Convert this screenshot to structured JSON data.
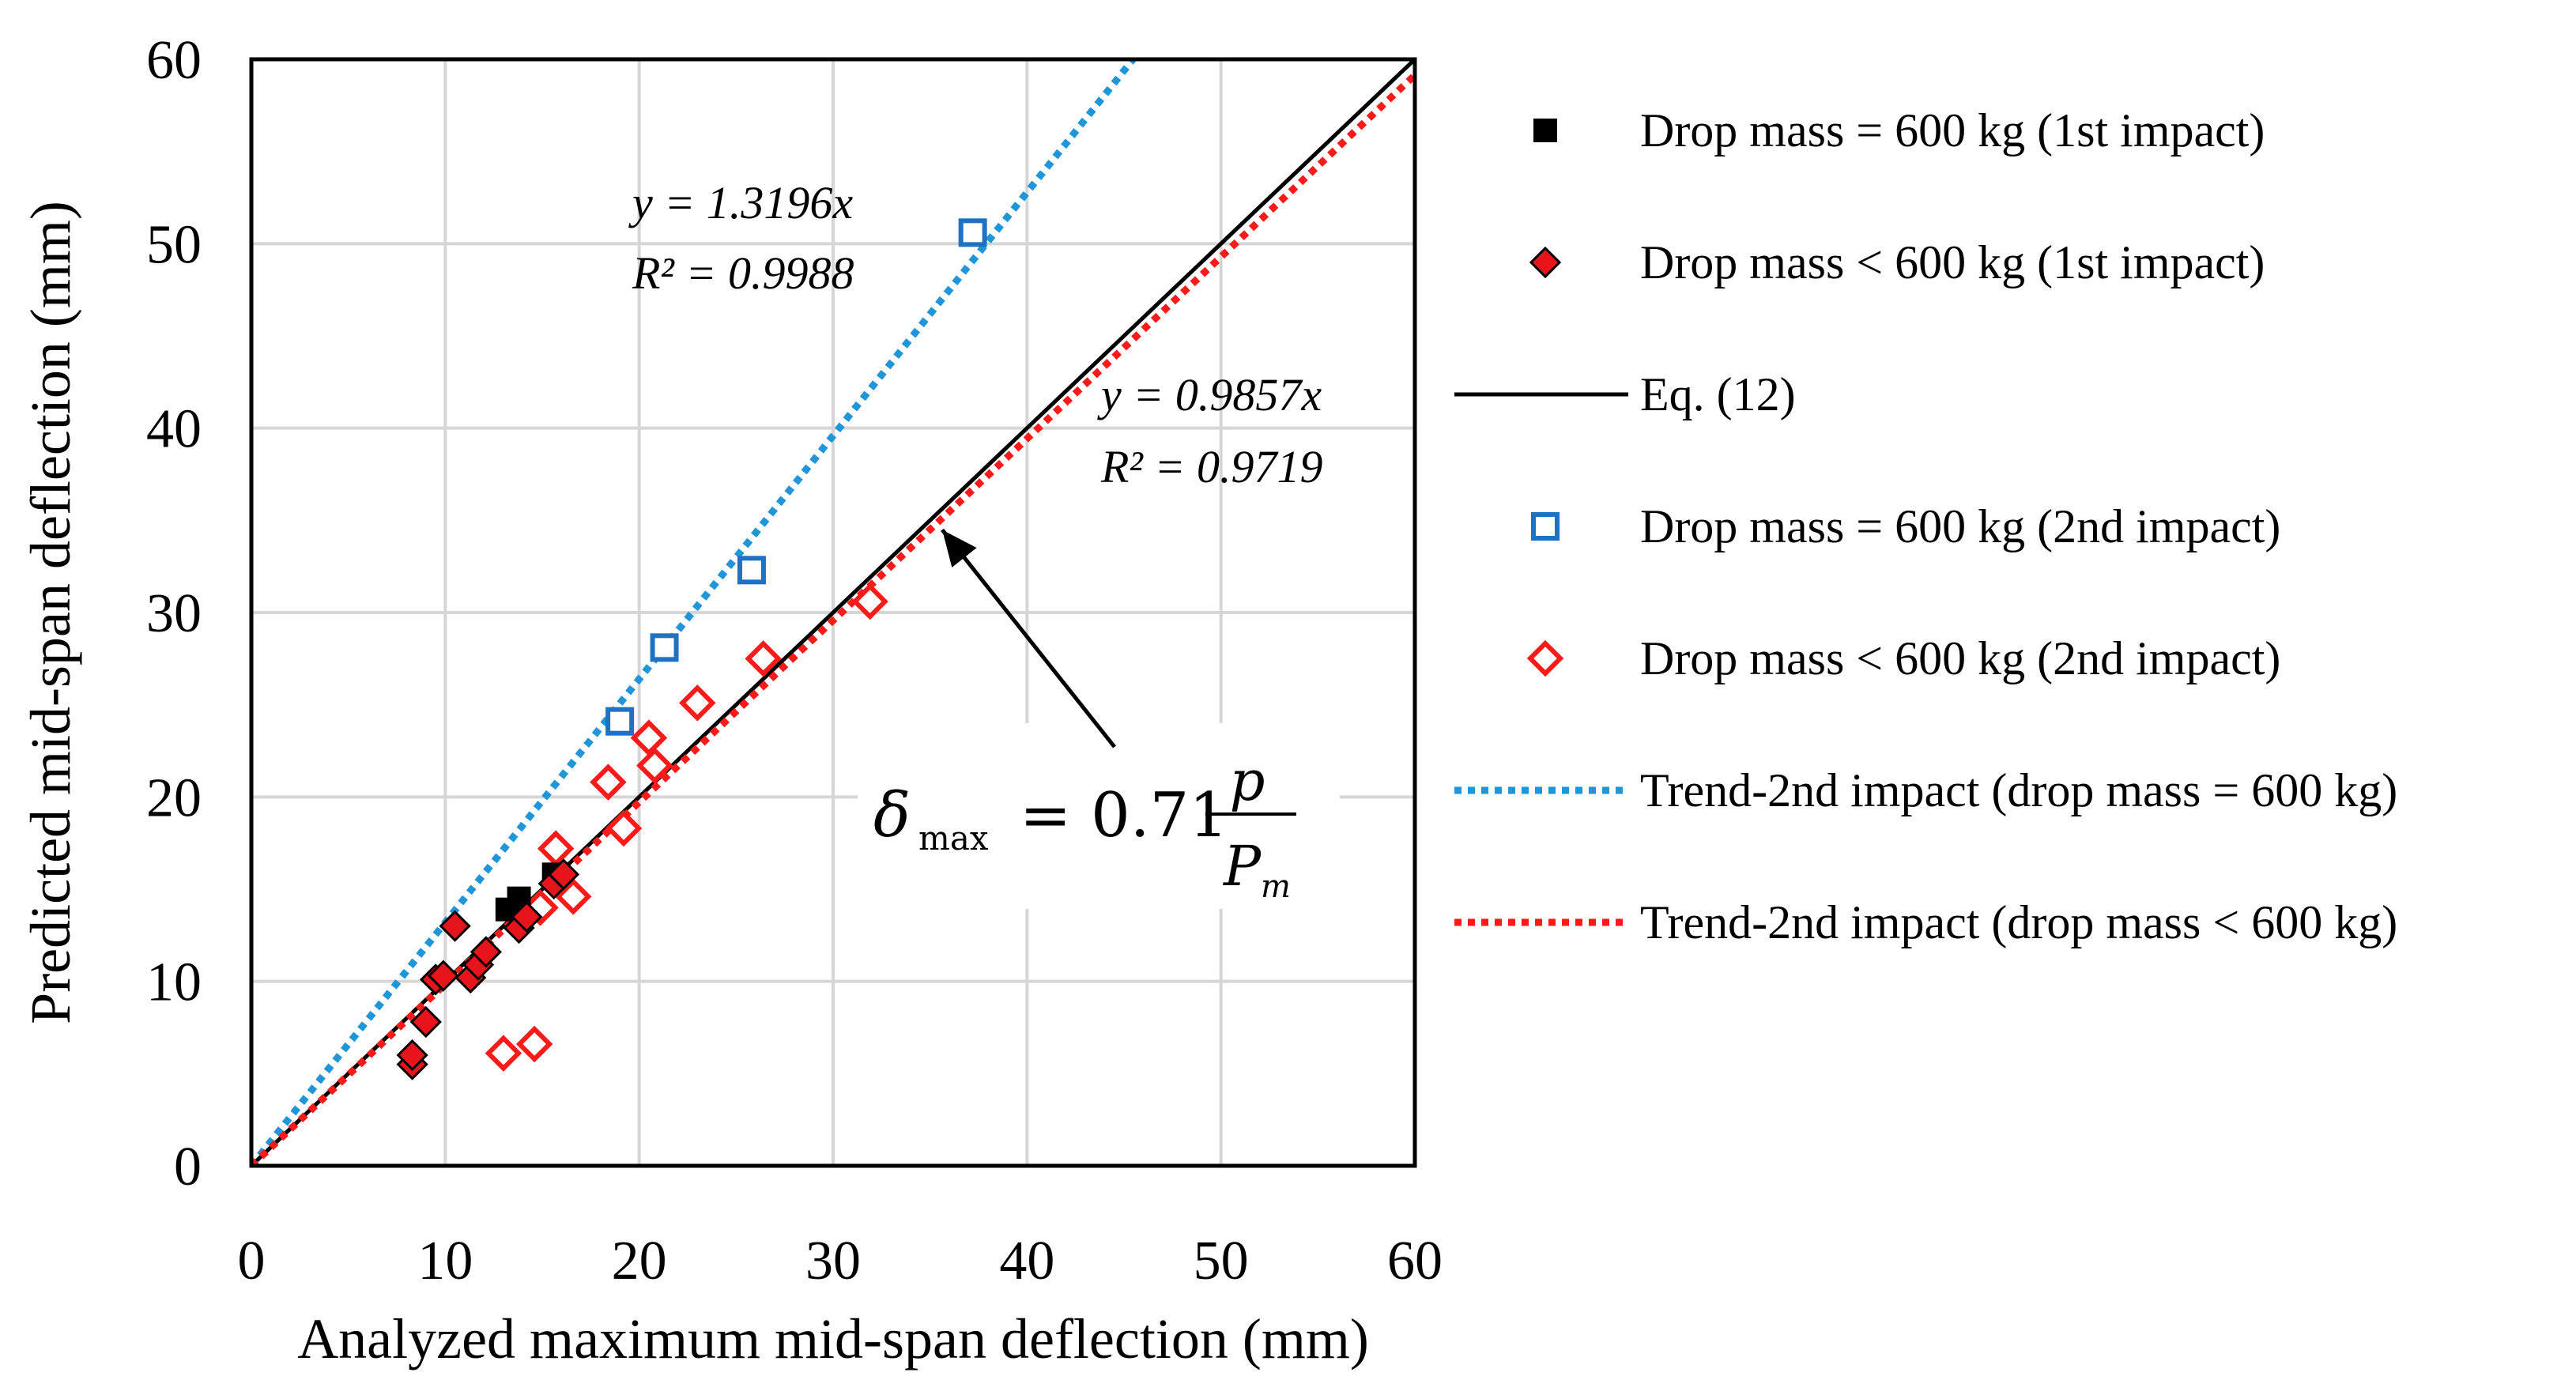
{
  "chart_data": {
    "type": "scatter",
    "xlabel": "Analyzed maximum mid-span deflection (mm)",
    "ylabel": "Predicted mid-span deflection (mm)",
    "xlim": [
      0,
      60
    ],
    "ylim": [
      0,
      60
    ],
    "xticks": [
      0,
      10,
      20,
      30,
      40,
      50,
      60
    ],
    "yticks": [
      0,
      10,
      20,
      30,
      40,
      50,
      60
    ],
    "grid": true,
    "legend_position": "right",
    "series": [
      {
        "name": "Drop mass = 600 kg (1st impact)",
        "kind": "points",
        "marker": "square-filled",
        "color": "#000000",
        "points": [
          [
            13.2,
            13.9
          ],
          [
            13.8,
            14.5
          ],
          [
            15.6,
            15.8
          ]
        ]
      },
      {
        "name": "Drop mass < 600 kg (1st impact)",
        "kind": "points",
        "marker": "diamond-filled",
        "color": "#e8141b",
        "points": [
          [
            8.3,
            5.5
          ],
          [
            8.3,
            6.0
          ],
          [
            9.0,
            7.8
          ],
          [
            9.5,
            10.1
          ],
          [
            9.9,
            10.3
          ],
          [
            10.5,
            13.0
          ],
          [
            11.3,
            10.2
          ],
          [
            11.7,
            10.9
          ],
          [
            12.1,
            11.6
          ],
          [
            13.8,
            12.9
          ],
          [
            14.2,
            13.5
          ],
          [
            15.6,
            15.3
          ],
          [
            16.1,
            15.8
          ]
        ]
      },
      {
        "name": "Eq. (12)",
        "kind": "line",
        "style": "solid",
        "color": "#000000",
        "points": [
          [
            0,
            0
          ],
          [
            60,
            60
          ]
        ]
      },
      {
        "name": "Drop mass = 600 kg (2nd impact)",
        "kind": "points",
        "marker": "square-open",
        "color": "#1e72c4",
        "points": [
          [
            19.0,
            24.1
          ],
          [
            21.3,
            28.1
          ],
          [
            25.8,
            32.3
          ],
          [
            37.2,
            50.6
          ]
        ]
      },
      {
        "name": "Drop mass < 600 kg (2nd impact)",
        "kind": "points",
        "marker": "diamond-open",
        "color": "#ff1a1a",
        "points": [
          [
            13.0,
            6.1
          ],
          [
            14.6,
            6.6
          ],
          [
            14.9,
            14.0
          ],
          [
            15.7,
            17.2
          ],
          [
            16.6,
            14.6
          ],
          [
            18.4,
            20.8
          ],
          [
            19.2,
            18.3
          ],
          [
            20.5,
            23.2
          ],
          [
            20.8,
            21.7
          ],
          [
            23.0,
            25.1
          ],
          [
            26.4,
            27.5
          ],
          [
            31.9,
            30.6
          ]
        ]
      },
      {
        "name": "Trend-2nd impact (drop mass = 600 kg)",
        "kind": "line",
        "style": "dotted",
        "color": "#1f96d8",
        "slope": 1.3196
      },
      {
        "name": "Trend-2nd impact (drop mass < 600 kg)",
        "kind": "line",
        "style": "dotted",
        "color": "#ff1a1a",
        "slope": 0.9857
      }
    ],
    "annotations": {
      "trend_blue_eq": "y = 1.3196x",
      "trend_blue_r2": "R² = 0.9988",
      "trend_red_eq": "y = 0.9857x",
      "trend_red_r2": "R² = 0.9719",
      "formula_delta": "δ",
      "formula_sub": "max",
      "formula_eq": "= 0.71",
      "formula_num": "p",
      "formula_den": "P",
      "formula_den_sub": "m",
      "arrow_target": [
        35.3,
        35.0
      ]
    }
  }
}
